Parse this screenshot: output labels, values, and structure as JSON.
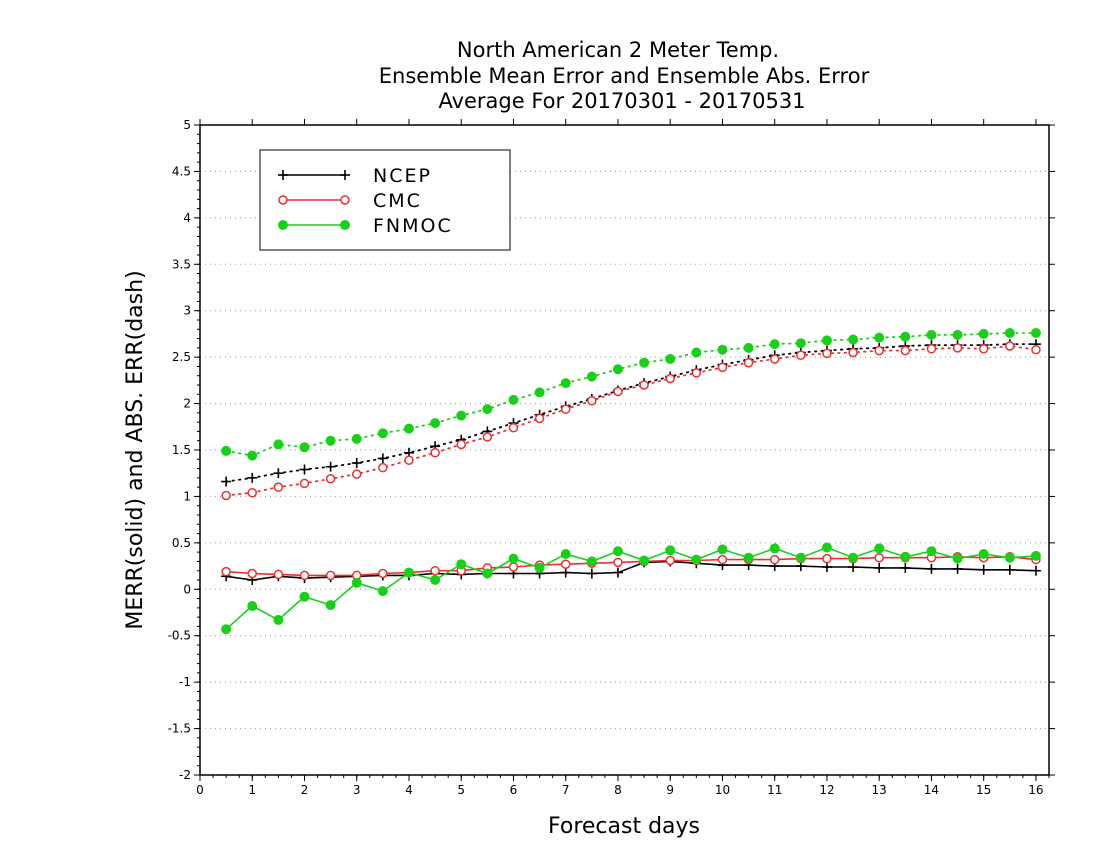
{
  "chart_data": {
    "type": "line",
    "title": [
      "North American 2 Meter Temp.",
      "Ensemble Mean Error and Ensemble Abs. Error",
      "Average For 20170301 - 20170531"
    ],
    "xlabel": "Forecast days",
    "ylabel": "MERR(solid) and ABS. ERR(dash)",
    "xlim": [
      0,
      16.25
    ],
    "ylim": [
      -2,
      5
    ],
    "xticks": [
      0,
      1,
      2,
      3,
      4,
      5,
      6,
      7,
      8,
      9,
      10,
      11,
      12,
      13,
      14,
      15,
      16
    ],
    "yticks": [
      -2,
      -1.5,
      -1,
      -0.5,
      0,
      0.5,
      1,
      1.5,
      2,
      2.5,
      3,
      3.5,
      4,
      4.5,
      5
    ],
    "ytick_labels": [
      "-2",
      "-1.5",
      "-1",
      "-0.5",
      "0",
      "0.5",
      "1",
      "1.5",
      "2",
      "2.5",
      "3",
      "3.5",
      "4",
      "4.5",
      "5"
    ],
    "grid": "horizontal dotted",
    "legend_position": "top-left",
    "x": [
      0.5,
      1,
      1.5,
      2,
      2.5,
      3,
      3.5,
      4,
      4.5,
      5,
      5.5,
      6,
      6.5,
      7,
      7.5,
      8,
      8.5,
      9,
      9.5,
      10,
      10.5,
      11,
      11.5,
      12,
      12.5,
      13,
      13.5,
      14,
      14.5,
      15,
      15.5,
      16
    ],
    "series": [
      {
        "name": "NCEP",
        "color": "#000000",
        "marker": "plus",
        "mean_error": [
          0.14,
          0.1,
          0.14,
          0.12,
          0.13,
          0.14,
          0.15,
          0.15,
          0.17,
          0.16,
          0.17,
          0.17,
          0.17,
          0.18,
          0.17,
          0.18,
          0.29,
          0.3,
          0.28,
          0.26,
          0.26,
          0.25,
          0.25,
          0.24,
          0.24,
          0.23,
          0.23,
          0.22,
          0.22,
          0.21,
          0.21,
          0.2
        ],
        "abs_error": [
          1.16,
          1.2,
          1.25,
          1.29,
          1.32,
          1.36,
          1.41,
          1.47,
          1.54,
          1.61,
          1.7,
          1.79,
          1.88,
          1.97,
          2.05,
          2.14,
          2.22,
          2.29,
          2.36,
          2.42,
          2.47,
          2.52,
          2.55,
          2.57,
          2.59,
          2.6,
          2.62,
          2.63,
          2.63,
          2.63,
          2.64,
          2.64
        ]
      },
      {
        "name": "CMC",
        "color": "#e83030",
        "marker": "open-circle",
        "mean_error": [
          0.19,
          0.17,
          0.16,
          0.15,
          0.15,
          0.15,
          0.17,
          0.18,
          0.2,
          0.2,
          0.23,
          0.24,
          0.26,
          0.27,
          0.28,
          0.29,
          0.3,
          0.31,
          0.31,
          0.32,
          0.32,
          0.32,
          0.33,
          0.33,
          0.33,
          0.34,
          0.34,
          0.34,
          0.35,
          0.34,
          0.35,
          0.32
        ],
        "abs_error": [
          1.01,
          1.04,
          1.1,
          1.14,
          1.19,
          1.24,
          1.31,
          1.39,
          1.47,
          1.56,
          1.64,
          1.74,
          1.84,
          1.94,
          2.03,
          2.13,
          2.2,
          2.27,
          2.33,
          2.39,
          2.44,
          2.48,
          2.52,
          2.54,
          2.55,
          2.57,
          2.57,
          2.59,
          2.6,
          2.59,
          2.62,
          2.58
        ]
      },
      {
        "name": "FNMOC",
        "color": "#19d019",
        "marker": "filled-circle",
        "mean_error": [
          -0.43,
          -0.18,
          -0.33,
          -0.08,
          -0.17,
          0.07,
          -0.02,
          0.18,
          0.1,
          0.27,
          0.17,
          0.33,
          0.23,
          0.38,
          0.3,
          0.41,
          0.31,
          0.42,
          0.32,
          0.43,
          0.34,
          0.44,
          0.34,
          0.45,
          0.34,
          0.44,
          0.35,
          0.41,
          0.33,
          0.38,
          0.34,
          0.36
        ],
        "abs_error": [
          1.49,
          1.44,
          1.56,
          1.53,
          1.6,
          1.62,
          1.68,
          1.73,
          1.79,
          1.87,
          1.94,
          2.04,
          2.12,
          2.22,
          2.29,
          2.37,
          2.44,
          2.48,
          2.55,
          2.58,
          2.6,
          2.64,
          2.65,
          2.68,
          2.69,
          2.71,
          2.72,
          2.74,
          2.74,
          2.75,
          2.76,
          2.76
        ]
      }
    ]
  }
}
